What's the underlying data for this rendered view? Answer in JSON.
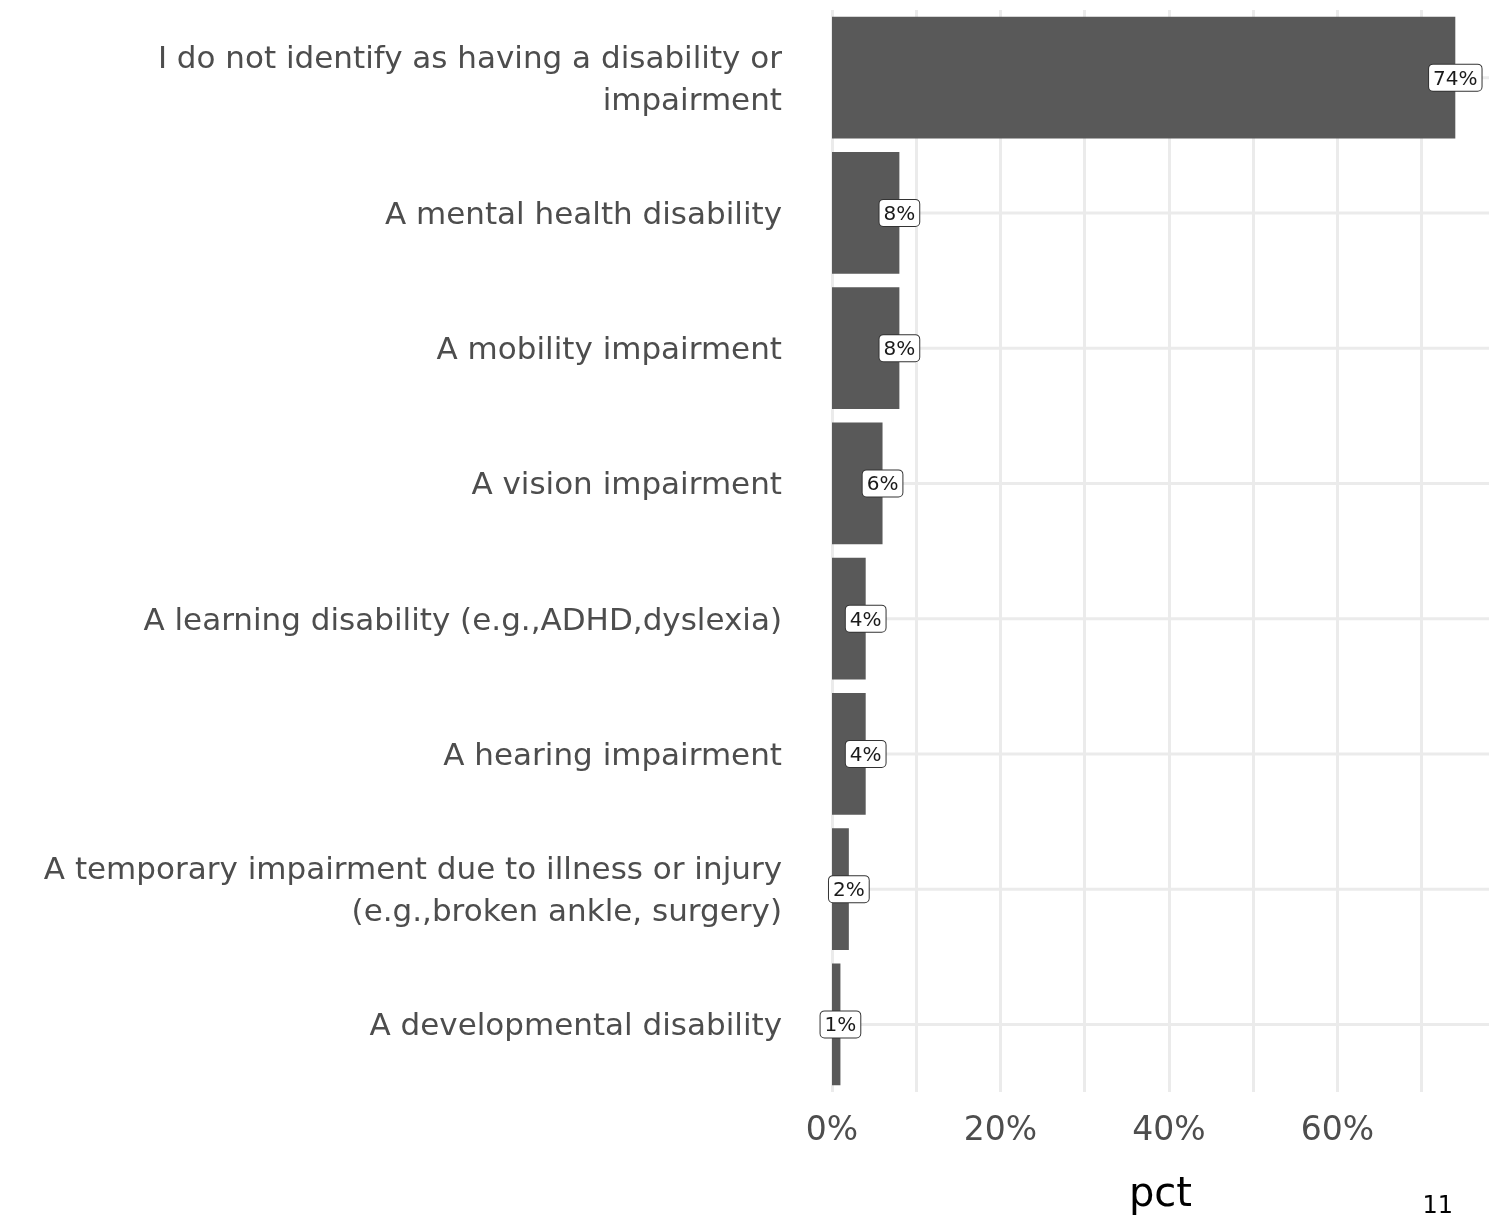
{
  "chart_data": {
    "type": "bar",
    "orientation": "horizontal",
    "categories": [
      "I do not identify as having a disability or\nimpairment",
      "A mental health disability",
      "A mobility impairment",
      "A vision impairment",
      "A learning disability (e.g.,ADHD,dyslexia)",
      "A hearing impairment",
      "A temporary impairment due to illness or injury\n(e.g.,broken ankle, surgery)",
      "A developmental disability"
    ],
    "values": [
      74,
      8,
      8,
      6,
      4,
      4,
      2,
      1
    ],
    "value_labels": [
      "74%",
      "8%",
      "8%",
      "6%",
      "4%",
      "4%",
      "2%",
      "1%"
    ],
    "color": "#595959",
    "xlabel": "pct",
    "xlim": [
      0,
      78
    ],
    "xticks": [
      {
        "value": 0,
        "label": "0%"
      },
      {
        "value": 10,
        "label": null
      },
      {
        "value": 20,
        "label": "20%"
      },
      {
        "value": 30,
        "label": null
      },
      {
        "value": 40,
        "label": "40%"
      },
      {
        "value": 50,
        "label": null
      },
      {
        "value": 60,
        "label": "60%"
      },
      {
        "value": 70,
        "label": null
      }
    ],
    "grid": true,
    "annotations": [
      "11"
    ]
  }
}
